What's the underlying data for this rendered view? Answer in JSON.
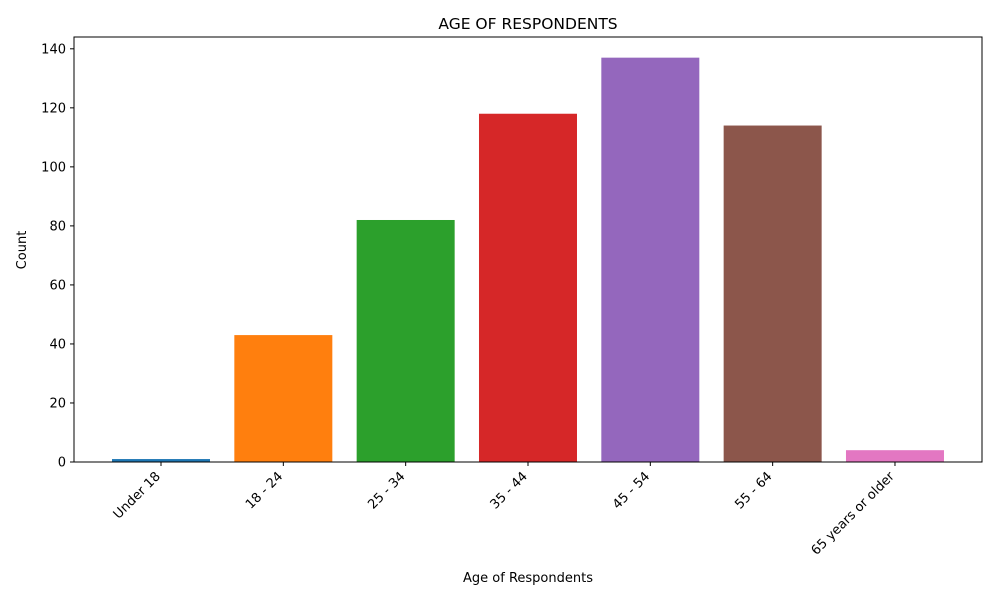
{
  "chart_data": {
    "type": "bar",
    "title": "AGE OF RESPONDENTS",
    "xlabel": "Age of Respondents",
    "ylabel": "Count",
    "categories": [
      "Under 18",
      "18 - 24",
      "25 - 34",
      "35 - 44",
      "45 - 54",
      "55 - 64",
      "65 years or older"
    ],
    "values": [
      1,
      43,
      82,
      118,
      137,
      114,
      4
    ],
    "colors": [
      "#1f77b4",
      "#ff7f0e",
      "#2ca02c",
      "#d62728",
      "#9467bd",
      "#8c564b",
      "#e377c2"
    ],
    "ylim": [
      0,
      144
    ],
    "yticks": [
      0,
      20,
      40,
      60,
      80,
      100,
      120,
      140
    ],
    "grid": false,
    "legend": "none"
  }
}
